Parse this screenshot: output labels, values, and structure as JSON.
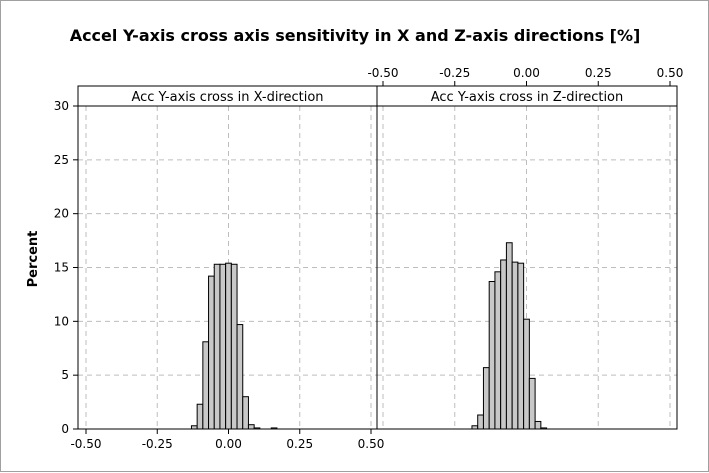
{
  "chart_data": {
    "type": "bar",
    "title": "Accel Y-axis cross axis sensitivity in X and Z-axis directions [%]",
    "ylabel": "Percent",
    "xlabel": "",
    "ylim": [
      0,
      30
    ],
    "yticks": [
      0,
      5,
      10,
      15,
      20,
      25,
      30
    ],
    "xlim": [
      -0.5,
      0.5
    ],
    "xticks": [
      -0.5,
      -0.25,
      0.0,
      0.25,
      0.5
    ],
    "xtick_labels": [
      "-0.50",
      "-0.25",
      "0.00",
      "0.25",
      "0.50"
    ],
    "bin_width": 0.02,
    "panels": [
      {
        "name": "Acc Y-axis cross in X-direction",
        "bins": [
          -0.12,
          -0.1,
          -0.08,
          -0.06,
          -0.04,
          -0.02,
          0.0,
          0.02,
          0.04,
          0.06,
          0.08,
          0.1,
          0.12,
          0.14,
          0.16
        ],
        "values": [
          0.3,
          2.3,
          8.1,
          14.2,
          15.3,
          15.3,
          15.4,
          15.3,
          9.7,
          3.0,
          0.4,
          0.1,
          0.0,
          0.0,
          0.1
        ]
      },
      {
        "name": "Acc Y-axis cross in Z-direction",
        "bins": [
          -0.18,
          -0.16,
          -0.14,
          -0.12,
          -0.1,
          -0.08,
          -0.06,
          -0.04,
          -0.02,
          0.0,
          0.02,
          0.04,
          0.06
        ],
        "values": [
          0.3,
          1.3,
          5.7,
          13.7,
          14.6,
          15.7,
          17.3,
          15.5,
          15.4,
          10.2,
          4.7,
          0.7,
          0.1
        ]
      }
    ]
  }
}
